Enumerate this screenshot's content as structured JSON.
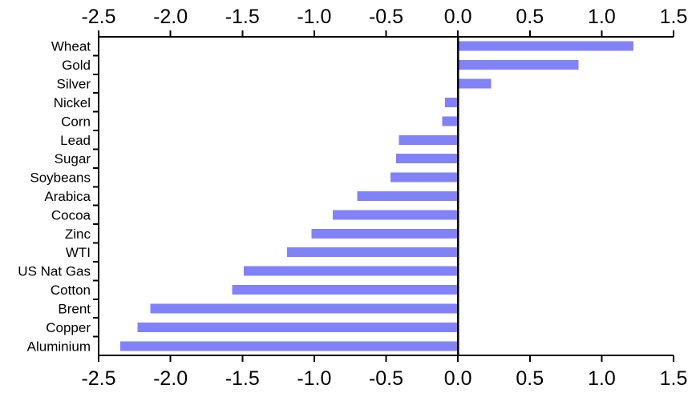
{
  "chart_data": {
    "type": "bar",
    "orientation": "horizontal",
    "title": "",
    "xlabel": "",
    "ylabel": "",
    "categories": [
      "Wheat",
      "Gold",
      "Silver",
      "Nickel",
      "Corn",
      "Lead",
      "Sugar",
      "Soybeans",
      "Arabica",
      "Cocoa",
      "Zinc",
      "WTI",
      "US Nat Gas",
      "Cotton",
      "Brent",
      "Copper",
      "Aluminium"
    ],
    "values": [
      1.22,
      0.84,
      0.23,
      -0.09,
      -0.11,
      -0.41,
      -0.43,
      -0.47,
      -0.7,
      -0.87,
      -1.02,
      -1.19,
      -1.49,
      -1.57,
      -2.14,
      -2.23,
      -2.35
    ],
    "xlim": [
      -2.5,
      1.5
    ],
    "x_tick_values": [
      -2.5,
      -2.0,
      -1.5,
      -1.0,
      -0.5,
      0.0,
      0.5,
      1.0,
      1.5
    ],
    "x_tick_labels": [
      "-2.5",
      "-2.0",
      "-1.5",
      "-1.0",
      "-0.5",
      "0.0",
      "0.5",
      "1.0",
      "1.5"
    ],
    "x_axis_positions": [
      "top",
      "bottom"
    ],
    "grid": false,
    "legend": null,
    "zero_line": true,
    "bar_color": "#8282F8",
    "axis_color": "#000000"
  }
}
